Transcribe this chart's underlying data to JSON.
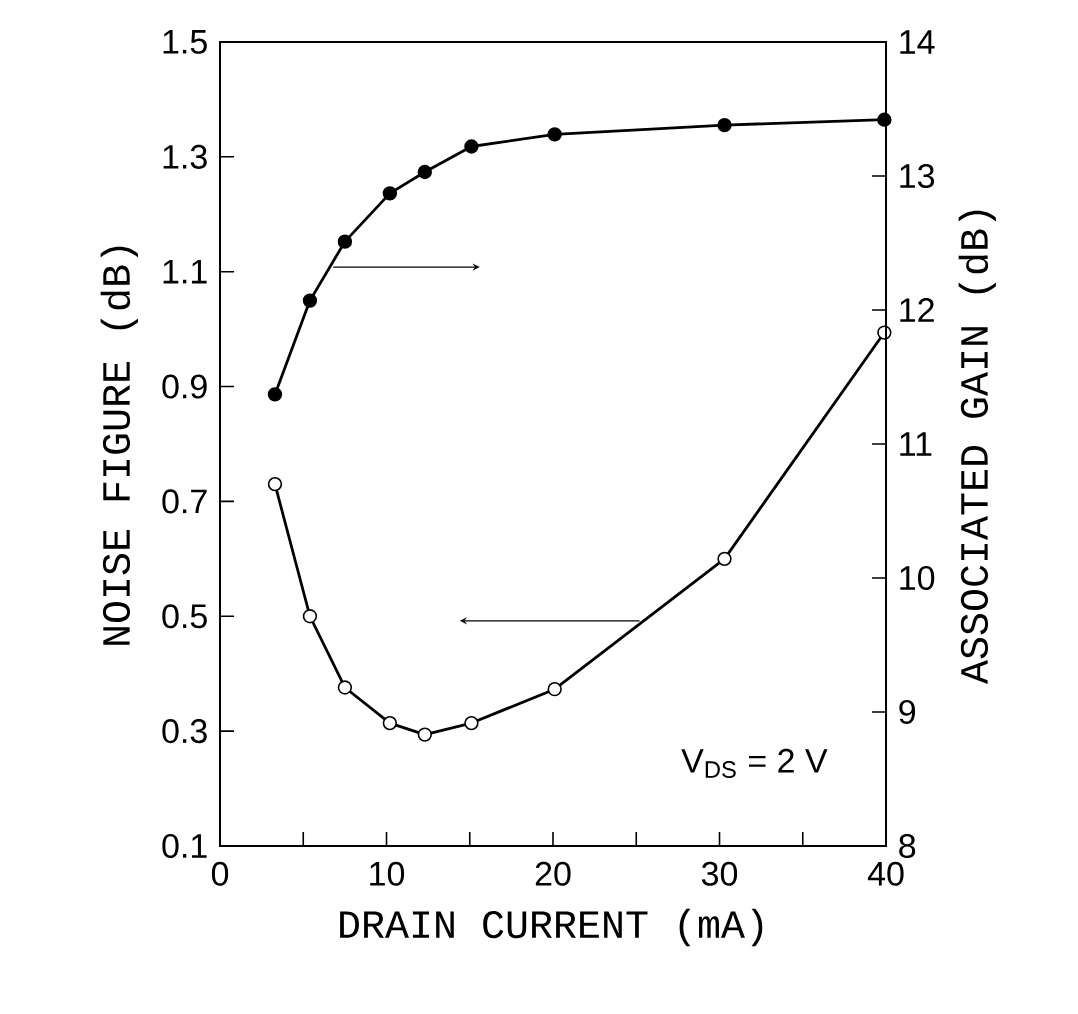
{
  "chart_data": {
    "type": "line",
    "xlabel": "DRAIN CURRENT  (mA)",
    "ylabel": "NOISE FIGURE (dB)",
    "y2label": "ASSOCIATED GAIN (dB)",
    "annotations": [
      "V$_{DS}$ = 2 V"
    ],
    "x": [
      3.3,
      5.4,
      7.5,
      10.2,
      12.3,
      15.1,
      20.1,
      30.3,
      39.9
    ],
    "series": [
      {
        "color": "#000000",
        "axis": "y",
        "values": [
          0.73,
          0.5,
          0.376,
          0.314,
          0.294,
          0.314,
          0.373,
          0.6,
          0.994
        ]
      },
      {
        "color": "#000000",
        "axis": "y2",
        "values": [
          11.37,
          12.07,
          12.51,
          12.87,
          13.03,
          13.22,
          13.31,
          13.38,
          13.42
        ]
      }
    ],
    "xlim": [
      0,
      40
    ],
    "xticks": [
      0,
      {
        "value": 5,
        "label": null
      },
      10,
      {
        "value": 15,
        "label": null
      },
      20,
      {
        "value": 25,
        "label": null
      },
      30,
      {
        "value": 35,
        "label": null
      },
      40
    ],
    "ylim": [
      0.1,
      1.5
    ],
    "yticks": [
      0.1,
      0.3,
      0.5,
      0.7,
      0.9,
      1.1,
      1.3,
      1.5
    ],
    "y2lim": [
      8,
      14
    ],
    "y2ticks": [
      8,
      9,
      10,
      11,
      12,
      13,
      14
    ],
    "marker": "circle",
    "line_style": "solid"
  }
}
